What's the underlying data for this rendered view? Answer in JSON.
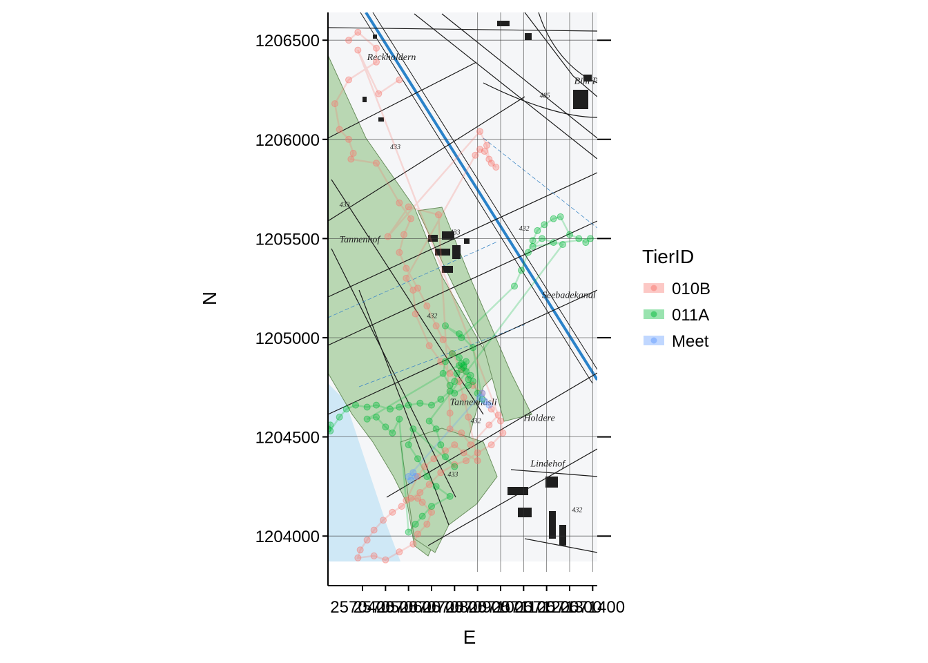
{
  "chart_data": {
    "type": "scatter",
    "xlabel": "E",
    "ylabel": "N",
    "xlim": [
      2570250,
      2571420
    ],
    "ylim": [
      1203750,
      1206640
    ],
    "x_ticks": [
      {
        "value": 2570400,
        "label": "2570400"
      },
      {
        "value": 2570500,
        "label": "2570500"
      },
      {
        "value": 2570600,
        "label": "2570600"
      },
      {
        "value": 2570700,
        "label": "2570700"
      },
      {
        "value": 2570800,
        "label": "2570800"
      },
      {
        "value": 2570900,
        "label": "2570900"
      },
      {
        "value": 2571000,
        "label": "2571000"
      },
      {
        "value": 2571100,
        "label": "2571100"
      },
      {
        "value": 2571200,
        "label": "2571200"
      },
      {
        "value": 2571300,
        "label": "2571300"
      },
      {
        "value": 2571400,
        "label": "2571400"
      }
    ],
    "y_ticks": [
      {
        "value": 1204000,
        "label": "1204000"
      },
      {
        "value": 1204500,
        "label": "1204500"
      },
      {
        "value": 1205000,
        "label": "1205000"
      },
      {
        "value": 1205500,
        "label": "1205500"
      },
      {
        "value": 1206000,
        "label": "1206000"
      },
      {
        "value": 1206500,
        "label": "1206500"
      }
    ],
    "grid_major_x": [
      2570900,
      2571000,
      2571100,
      2571200,
      2571300,
      2571400
    ],
    "grid_major_y": [
      1204000,
      1204500,
      1205000,
      1205500,
      1206000,
      1206500
    ],
    "legend": {
      "title": "TierID",
      "placement": "right",
      "entries": [
        {
          "label": "010B",
          "color": "#F8766D"
        },
        {
          "label": "011A",
          "color": "#00BA38"
        },
        {
          "label": "Meet",
          "color": "#619CFF"
        }
      ]
    },
    "series": [
      {
        "name": "010B",
        "color": "#F8766D",
        "points": [
          [
            2570340,
            1206500
          ],
          [
            2570380,
            1206540
          ],
          [
            2570460,
            1206460
          ],
          [
            2570460,
            1206390
          ],
          [
            2570340,
            1206300
          ],
          [
            2570280,
            1206180
          ],
          [
            2570300,
            1206050
          ],
          [
            2570340,
            1206000
          ],
          [
            2570360,
            1205930
          ],
          [
            2570350,
            1205900
          ],
          [
            2570460,
            1205880
          ],
          [
            2570560,
            1205680
          ],
          [
            2570610,
            1205600
          ],
          [
            2570580,
            1205520
          ],
          [
            2570560,
            1205430
          ],
          [
            2570590,
            1205350
          ],
          [
            2570640,
            1205250
          ],
          [
            2570680,
            1205160
          ],
          [
            2570720,
            1205060
          ],
          [
            2570750,
            1204990
          ],
          [
            2570790,
            1204920
          ],
          [
            2570830,
            1204840
          ],
          [
            2570880,
            1204760
          ],
          [
            2570920,
            1204720
          ],
          [
            2570960,
            1204640
          ],
          [
            2571000,
            1204580
          ],
          [
            2571010,
            1204520
          ],
          [
            2570960,
            1204460
          ],
          [
            2570900,
            1204420
          ],
          [
            2570850,
            1204380
          ],
          [
            2570800,
            1204360
          ],
          [
            2570740,
            1204320
          ],
          [
            2570690,
            1204260
          ],
          [
            2570650,
            1204220
          ],
          [
            2570610,
            1204190
          ],
          [
            2570570,
            1204150
          ],
          [
            2570530,
            1204120
          ],
          [
            2570490,
            1204080
          ],
          [
            2570450,
            1204030
          ],
          [
            2570420,
            1203980
          ],
          [
            2570390,
            1203930
          ],
          [
            2570380,
            1203890
          ],
          [
            2570450,
            1203900
          ],
          [
            2570500,
            1203880
          ],
          [
            2570560,
            1203920
          ],
          [
            2570620,
            1203960
          ],
          [
            2570640,
            1204010
          ],
          [
            2570680,
            1204060
          ],
          [
            2570700,
            1204120
          ],
          [
            2570660,
            1204170
          ],
          [
            2570640,
            1204190
          ],
          [
            2570590,
            1204180
          ],
          [
            2570640,
            1204300
          ],
          [
            2570670,
            1204350
          ],
          [
            2570710,
            1204390
          ],
          [
            2570760,
            1204430
          ],
          [
            2570800,
            1204460
          ],
          [
            2570840,
            1204420
          ],
          [
            2570900,
            1204380
          ],
          [
            2570860,
            1204600
          ],
          [
            2570840,
            1204700
          ],
          [
            2570820,
            1204780
          ],
          [
            2570780,
            1204820
          ],
          [
            2570740,
            1204880
          ],
          [
            2570690,
            1204960
          ],
          [
            2570630,
            1205120
          ],
          [
            2570620,
            1205240
          ],
          [
            2570590,
            1205300
          ],
          [
            2570890,
            1205920
          ],
          [
            2570910,
            1205950
          ],
          [
            2570930,
            1205940
          ],
          [
            2570960,
            1205880
          ],
          [
            2570980,
            1205860
          ],
          [
            2570950,
            1205900
          ],
          [
            2570940,
            1205970
          ],
          [
            2570910,
            1206040
          ],
          [
            2570510,
            1205510
          ],
          [
            2570600,
            1205660
          ],
          [
            2570730,
            1205620
          ],
          [
            2570780,
            1204620
          ],
          [
            2570780,
            1204540
          ],
          [
            2570830,
            1204520
          ],
          [
            2570870,
            1204460
          ],
          [
            2570950,
            1204560
          ],
          [
            2570990,
            1204610
          ],
          [
            2570380,
            1206450
          ],
          [
            2570470,
            1206230
          ],
          [
            2570560,
            1206300
          ]
        ]
      },
      {
        "name": "011A",
        "color": "#00BA38",
        "points": [
          [
            2570250,
            1204540
          ],
          [
            2570260,
            1204560
          ],
          [
            2570260,
            1204530
          ],
          [
            2570300,
            1204600
          ],
          [
            2570330,
            1204640
          ],
          [
            2570370,
            1204660
          ],
          [
            2570420,
            1204650
          ],
          [
            2570460,
            1204660
          ],
          [
            2570520,
            1204640
          ],
          [
            2570560,
            1204650
          ],
          [
            2570600,
            1204660
          ],
          [
            2570650,
            1204670
          ],
          [
            2570700,
            1204660
          ],
          [
            2570740,
            1204690
          ],
          [
            2570780,
            1204730
          ],
          [
            2570800,
            1204780
          ],
          [
            2570810,
            1204820
          ],
          [
            2570830,
            1204840
          ],
          [
            2570850,
            1204830
          ],
          [
            2570870,
            1204810
          ],
          [
            2570860,
            1204790
          ],
          [
            2570840,
            1204860
          ],
          [
            2570820,
            1204900
          ],
          [
            2570790,
            1204920
          ],
          [
            2570760,
            1204880
          ],
          [
            2570750,
            1204820
          ],
          [
            2570780,
            1204760
          ],
          [
            2570800,
            1204720
          ],
          [
            2570860,
            1204760
          ],
          [
            2570880,
            1204780
          ],
          [
            2570900,
            1204720
          ],
          [
            2570920,
            1204690
          ],
          [
            2570880,
            1204950
          ],
          [
            2570820,
            1205020
          ],
          [
            2570760,
            1205060
          ],
          [
            2570830,
            1205000
          ],
          [
            2571060,
            1205260
          ],
          [
            2571090,
            1205340
          ],
          [
            2571120,
            1205430
          ],
          [
            2571140,
            1205490
          ],
          [
            2571160,
            1205540
          ],
          [
            2571190,
            1205570
          ],
          [
            2571230,
            1205600
          ],
          [
            2571260,
            1205610
          ],
          [
            2571300,
            1205520
          ],
          [
            2571340,
            1205500
          ],
          [
            2571370,
            1205480
          ],
          [
            2571390,
            1205500
          ],
          [
            2571140,
            1205460
          ],
          [
            2571180,
            1205500
          ],
          [
            2571230,
            1205480
          ],
          [
            2571270,
            1205470
          ],
          [
            2570690,
            1204580
          ],
          [
            2570720,
            1204540
          ],
          [
            2570740,
            1204460
          ],
          [
            2570760,
            1204400
          ],
          [
            2570800,
            1204350
          ],
          [
            2570620,
            1204540
          ],
          [
            2570600,
            1204460
          ],
          [
            2570640,
            1204390
          ],
          [
            2570680,
            1204300
          ],
          [
            2570720,
            1204250
          ],
          [
            2570780,
            1204200
          ],
          [
            2570700,
            1204150
          ],
          [
            2570660,
            1204100
          ],
          [
            2570630,
            1204060
          ],
          [
            2570600,
            1204020
          ],
          [
            2570560,
            1204590
          ],
          [
            2570530,
            1204520
          ],
          [
            2570500,
            1204550
          ],
          [
            2570460,
            1204600
          ],
          [
            2570420,
            1204590
          ],
          [
            2570830,
            1204870
          ],
          [
            2570840,
            1204850
          ],
          [
            2570850,
            1204880
          ],
          [
            2570820,
            1204860
          ]
        ]
      },
      {
        "name": "Meet",
        "color": "#619CFF",
        "points": [
          [
            2570910,
            1204700
          ],
          [
            2570930,
            1204680
          ],
          [
            2570950,
            1204660
          ],
          [
            2570920,
            1204720
          ],
          [
            2570600,
            1204300
          ],
          [
            2570610,
            1204280
          ],
          [
            2570630,
            1204300
          ],
          [
            2570620,
            1204320
          ]
        ]
      }
    ]
  },
  "map": {
    "labels": [
      {
        "text": "Reckholdern",
        "x": 2570420,
        "y": 1206400
      },
      {
        "text": "Tannenhof",
        "x": 2570300,
        "y": 1205480
      },
      {
        "text": "Tannenhüsli",
        "x": 2570780,
        "y": 1204660
      },
      {
        "text": "Lindehof",
        "x": 2571130,
        "y": 1204350
      },
      {
        "text": "Holdere",
        "x": 2571100,
        "y": 1204580
      },
      {
        "text": "Bim Platä",
        "x": 2571320,
        "y": 1206280
      },
      {
        "text": "Seebadekanal",
        "x": 2571180,
        "y": 1205200
      },
      {
        "text": "433",
        "x": 2570520,
        "y": 1205950
      },
      {
        "text": "433",
        "x": 2570300,
        "y": 1205660
      },
      {
        "text": "433",
        "x": 2570780,
        "y": 1205520
      },
      {
        "text": "432",
        "x": 2570680,
        "y": 1205100
      },
      {
        "text": "432",
        "x": 2570870,
        "y": 1204570
      },
      {
        "text": "433",
        "x": 2570770,
        "y": 1204300
      },
      {
        "text": "432",
        "x": 2571080,
        "y": 1205540
      },
      {
        "text": "432",
        "x": 2571310,
        "y": 1204120
      },
      {
        "text": "485",
        "x": 2571170,
        "y": 1206210
      }
    ]
  }
}
